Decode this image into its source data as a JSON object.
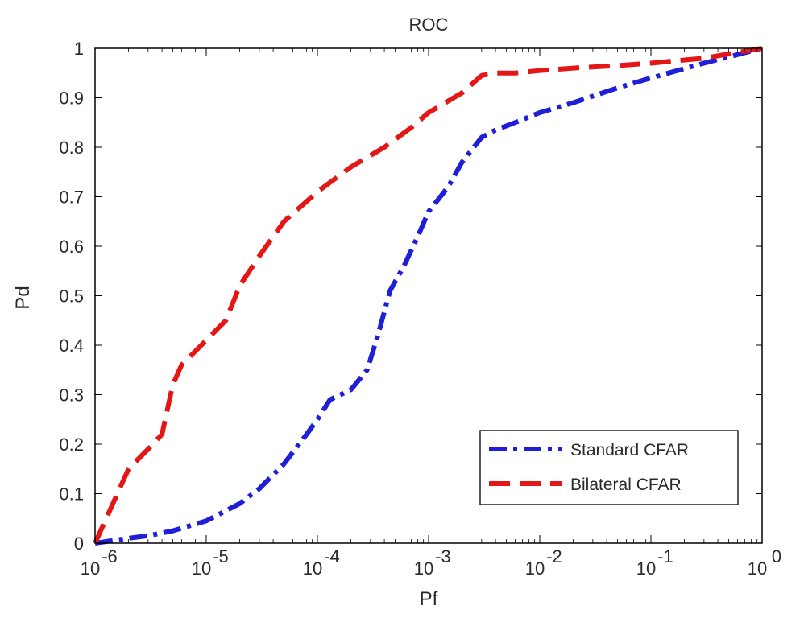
{
  "chart_data": {
    "type": "line",
    "title": "ROC",
    "xlabel": "Pf",
    "ylabel": "Pd",
    "xscale": "log",
    "xlim": [
      1e-06,
      1
    ],
    "ylim": [
      0,
      1
    ],
    "grid": false,
    "legend_position": "bottom-right",
    "x_tick_bases": [
      "10",
      "10",
      "10",
      "10",
      "10",
      "10",
      "10"
    ],
    "x_tick_exponents": [
      "-6",
      "-5",
      "-4",
      "-3",
      "-2",
      "-1",
      "0"
    ],
    "x_tick_values": [
      1e-06,
      1e-05,
      0.0001,
      0.001,
      0.01,
      0.1,
      1
    ],
    "y_ticks": [
      "0",
      "0.1",
      "0.2",
      "0.3",
      "0.4",
      "0.5",
      "0.6",
      "0.7",
      "0.8",
      "0.9",
      "1"
    ],
    "y_tick_values": [
      0,
      0.1,
      0.2,
      0.3,
      0.4,
      0.5,
      0.6,
      0.7,
      0.8,
      0.9,
      1
    ],
    "series": [
      {
        "name": "Standard CFAR",
        "color": "#1f1fd7",
        "line_style": "dash-dot",
        "x": [
          1e-06,
          2e-06,
          3e-06,
          5e-06,
          1e-05,
          2e-05,
          3e-05,
          5e-05,
          8e-05,
          0.0001,
          0.00013,
          0.0002,
          0.00028,
          0.00035,
          0.00045,
          0.0006,
          0.0008,
          0.001,
          0.0015,
          0.002,
          0.003,
          0.004,
          0.006,
          0.01,
          0.02,
          0.05,
          0.1,
          0.3,
          1
        ],
        "y": [
          0.0,
          0.01,
          0.015,
          0.025,
          0.045,
          0.08,
          0.11,
          0.16,
          0.22,
          0.25,
          0.29,
          0.31,
          0.35,
          0.42,
          0.51,
          0.56,
          0.62,
          0.67,
          0.72,
          0.77,
          0.82,
          0.835,
          0.85,
          0.87,
          0.89,
          0.92,
          0.94,
          0.97,
          1.0
        ]
      },
      {
        "name": "Bilateral CFAR",
        "color": "#e51616",
        "line_style": "dashed",
        "x": [
          1e-06,
          2e-06,
          3e-06,
          4e-06,
          5e-06,
          6e-06,
          1e-05,
          1.5e-05,
          2e-05,
          3e-05,
          5e-05,
          0.0001,
          0.0002,
          0.0004,
          0.0007,
          0.001,
          0.002,
          0.003,
          0.004,
          0.006,
          0.01,
          0.02,
          0.05,
          0.1,
          0.3,
          1
        ],
        "y": [
          0.0,
          0.15,
          0.19,
          0.22,
          0.32,
          0.36,
          0.41,
          0.45,
          0.52,
          0.58,
          0.65,
          0.71,
          0.76,
          0.8,
          0.84,
          0.87,
          0.91,
          0.945,
          0.95,
          0.95,
          0.955,
          0.96,
          0.965,
          0.97,
          0.98,
          1.0
        ]
      }
    ]
  }
}
